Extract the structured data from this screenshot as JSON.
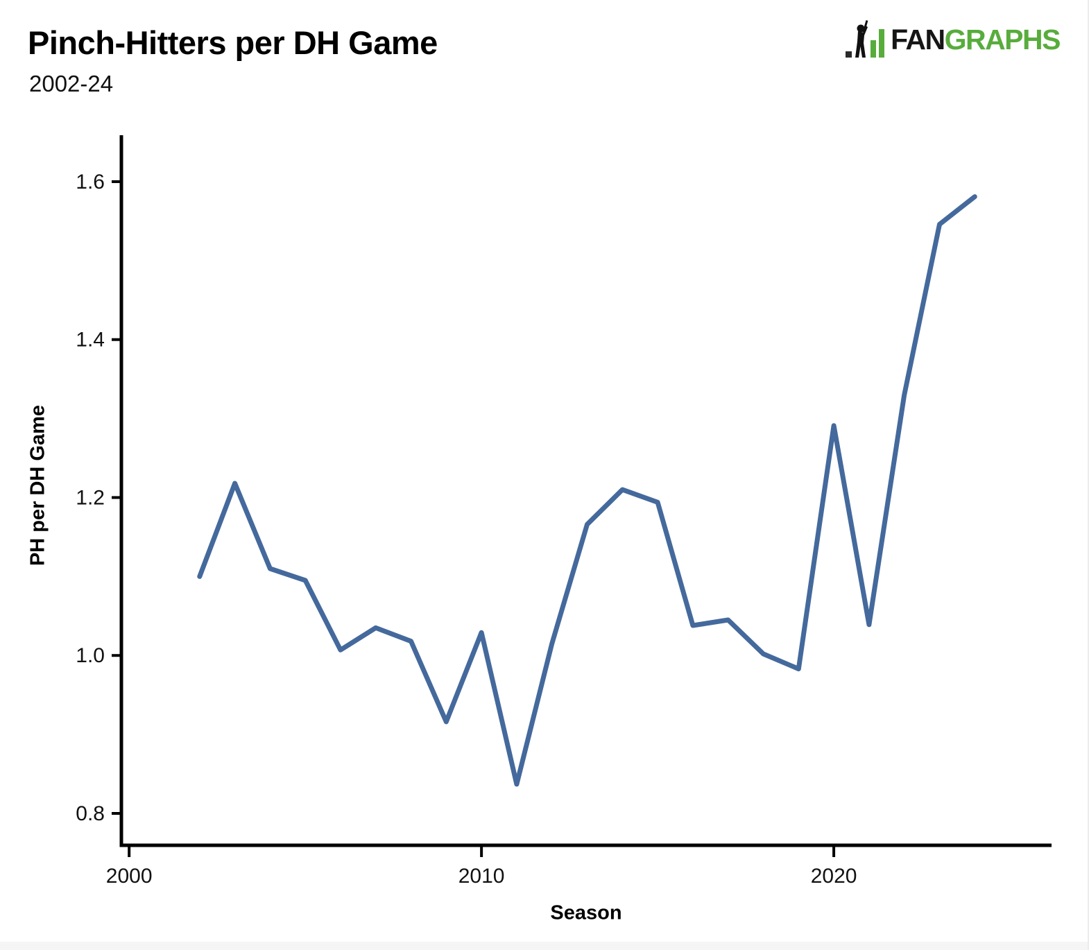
{
  "header": {
    "title": "Pinch-Hitters per DH Game",
    "subtitle": "2002-24"
  },
  "logo": {
    "fan": "FAN",
    "graphs": "GRAPHS",
    "green": "#58ac3c",
    "black": "#161616"
  },
  "chart_data": {
    "type": "line",
    "title": "Pinch-Hitters per DH Game",
    "subtitle": "2002-24",
    "xlabel": "Season",
    "ylabel": "PH per DH Game",
    "x": [
      2002,
      2003,
      2004,
      2005,
      2006,
      2007,
      2008,
      2009,
      2010,
      2011,
      2012,
      2013,
      2014,
      2015,
      2016,
      2017,
      2018,
      2019,
      2020,
      2021,
      2022,
      2023,
      2024
    ],
    "values": [
      1.1,
      1.218,
      1.11,
      1.095,
      1.007,
      1.035,
      1.018,
      0.916,
      1.029,
      0.837,
      1.015,
      1.166,
      1.21,
      1.194,
      1.038,
      1.045,
      1.002,
      0.983,
      1.291,
      1.039,
      1.33,
      1.546,
      1.581
    ],
    "x_ticks": [
      2000,
      2010,
      2020
    ],
    "y_ticks": [
      1.6,
      1.4,
      1.2,
      1.0,
      0.8
    ],
    "xlim": [
      1999.78,
      2026.18
    ],
    "ylim": [
      0.7596,
      1.6588
    ],
    "grid": false,
    "legend": "none",
    "line_color": "#44699c",
    "axis_color": "#000000"
  }
}
